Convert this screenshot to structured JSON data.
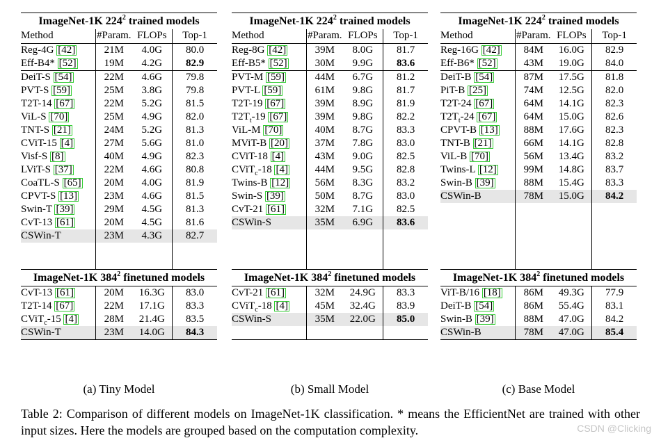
{
  "panels": [
    {
      "name": "tiny",
      "section224_title_prefix": "ImageNet-1K 224",
      "section224_title_sup": "2",
      "section224_title_suffix": " trained models",
      "headers": [
        "Method",
        "#Param.",
        "FLOPs",
        "Top-1"
      ],
      "groups224": [
        [
          {
            "method": "Reg-4G ",
            "ref": "[42]",
            "param": "21M",
            "flops": "4.0G",
            "top1": "80.0"
          },
          {
            "method": "Eff-B4* ",
            "ref": "[52]",
            "param": "19M",
            "flops": "4.2G",
            "top1": "82.9",
            "best": true
          }
        ],
        [
          {
            "method": "DeiT-S ",
            "ref": "[54]",
            "param": "22M",
            "flops": "4.6G",
            "top1": "79.8"
          },
          {
            "method": "PVT-S ",
            "ref": "[59]",
            "param": "25M",
            "flops": "3.8G",
            "top1": "79.8"
          },
          {
            "method": "T2T-14 ",
            "ref": "[67]",
            "param": "22M",
            "flops": "5.2G",
            "top1": "81.5"
          },
          {
            "method": "ViL-S ",
            "ref": "[70]",
            "param": "25M",
            "flops": "4.9G",
            "top1": "82.0"
          },
          {
            "method": "TNT-S ",
            "ref": "[21]",
            "param": "24M",
            "flops": "5.2G",
            "top1": "81.3"
          },
          {
            "method": "CViT-15 ",
            "ref": "[4]",
            "param": "27M",
            "flops": "5.6G",
            "top1": "81.0"
          },
          {
            "method": "Visf-S ",
            "ref": "[8]",
            "param": "40M",
            "flops": "4.9G",
            "top1": "82.3"
          },
          {
            "method": "LViT-S ",
            "ref": "[37]",
            "param": "22M",
            "flops": "4.6G",
            "top1": "80.8"
          },
          {
            "method": "CoaTL-S ",
            "ref": "[65]",
            "param": "20M",
            "flops": "4.0G",
            "top1": "81.9"
          },
          {
            "method": "CPVT-S ",
            "ref": "[13]",
            "param": "23M",
            "flops": "4.6G",
            "top1": "81.5"
          },
          {
            "method": "Swin-T ",
            "ref": "[39]",
            "param": "29M",
            "flops": "4.5G",
            "top1": "81.3"
          },
          {
            "method": "CvT-13 ",
            "ref": "[61]",
            "param": "20M",
            "flops": "4.5G",
            "top1": "81.6"
          },
          {
            "method": "CSWin-T",
            "ref": "",
            "param": "23M",
            "flops": "4.3G",
            "top1": "82.7",
            "highlight": true
          }
        ]
      ],
      "section384_title_prefix": "ImageNet-1K 384",
      "section384_title_sup": "2",
      "section384_title_suffix": " finetuned models",
      "rows384": [
        {
          "method": "CvT-13 ",
          "ref": "[61]",
          "param": "20M",
          "flops": "16.3G",
          "top1": "83.0"
        },
        {
          "method": "T2T-14 ",
          "ref": "[67]",
          "param": "22M",
          "flops": "17.1G",
          "top1": "83.3"
        },
        {
          "method": "CViT",
          "msub": "c",
          "method_after": "-15 ",
          "ref": "[4]",
          "param": "28M",
          "flops": "21.4G",
          "top1": "83.5"
        },
        {
          "method": "CSWin-T",
          "ref": "",
          "param": "23M",
          "flops": "14.0G",
          "top1": "84.3",
          "highlight": true,
          "best": true
        }
      ],
      "subcaption": "(a) Tiny Model"
    },
    {
      "name": "small",
      "section224_title_prefix": "ImageNet-1K 224",
      "section224_title_sup": "2",
      "section224_title_suffix": " trained models",
      "headers": [
        "Method",
        "#Param.",
        "FLOPs",
        "Top-1"
      ],
      "groups224": [
        [
          {
            "method": "Reg-8G ",
            "ref": "[42]",
            "param": "39M",
            "flops": "8.0G",
            "top1": "81.7"
          },
          {
            "method": "Eff-B5* ",
            "ref": "[52]",
            "param": "30M",
            "flops": "9.9G",
            "top1": "83.6",
            "best": true
          }
        ],
        [
          {
            "method": "PVT-M ",
            "ref": "[59]",
            "param": "44M",
            "flops": "6.7G",
            "top1": "81.2"
          },
          {
            "method": "PVT-L ",
            "ref": "[59]",
            "param": "61M",
            "flops": "9.8G",
            "top1": "81.7"
          },
          {
            "method": "T2T-19 ",
            "ref": "[67]",
            "param": "39M",
            "flops": "8.9G",
            "top1": "81.9"
          },
          {
            "method": "T2T",
            "msub": "t",
            "method_after": "-19 ",
            "ref": "[67]",
            "param": "39M",
            "flops": "9.8G",
            "top1": "82.2"
          },
          {
            "method": "ViL-M ",
            "ref": "[70]",
            "param": "40M",
            "flops": "8.7G",
            "top1": "83.3"
          },
          {
            "method": "MViT-B  ",
            "ref": "[20]",
            "param": "37M",
            "flops": "7.8G",
            "top1": "83.0"
          },
          {
            "method": "CViT-18 ",
            "ref": "[4]",
            "param": "43M",
            "flops": "9.0G",
            "top1": "82.5"
          },
          {
            "method": "CViT",
            "msub": "c",
            "method_after": "-18 ",
            "ref": "[4]",
            "param": "44M",
            "flops": "9.5G",
            "top1": "82.8"
          },
          {
            "method": "Twins-B ",
            "ref": "[12]",
            "param": "56M",
            "flops": "8.3G",
            "top1": "83.2"
          },
          {
            "method": "Swin-S ",
            "ref": "[39]",
            "param": "50M",
            "flops": "8.7G",
            "top1": "83.0"
          },
          {
            "method": "CvT-21 ",
            "ref": "[61]",
            "param": "32M",
            "flops": "7.1G",
            "top1": "82.5"
          },
          {
            "method": "CSWin-S",
            "ref": "",
            "param": "35M",
            "flops": "6.9G",
            "top1": "83.6",
            "highlight": true,
            "best": true
          }
        ]
      ],
      "section384_title_prefix": "ImageNet-1K 384",
      "section384_title_sup": "2",
      "section384_title_suffix": " finetuned models",
      "rows384": [
        {
          "method": "CvT-21  ",
          "ref": "[61]",
          "param": "32M",
          "flops": "24.9G",
          "top1": "83.3"
        },
        {
          "method": "CViT",
          "msub": "c",
          "method_after": "-18 ",
          "ref": "[4]",
          "param": "45M",
          "flops": "32.4G",
          "top1": "83.9"
        },
        {
          "method": "CSWin-S",
          "ref": "",
          "param": "35M",
          "flops": "22.0G",
          "top1": "85.0",
          "highlight": true,
          "best": true
        }
      ],
      "subcaption": "(b) Small Model"
    },
    {
      "name": "base",
      "section224_title_prefix": "ImageNet-1K 224",
      "section224_title_sup": "2",
      "section224_title_suffix": " trained models",
      "headers": [
        "Method",
        "#Param.",
        "FLOPs",
        "Top-1"
      ],
      "groups224": [
        [
          {
            "method": "Reg-16G ",
            "ref": "[42]",
            "param": "84M",
            "flops": "16.0G",
            "top1": "82.9"
          },
          {
            "method": "Eff-B6* ",
            "ref": "[52]",
            "param": "43M",
            "flops": "19.0G",
            "top1": "84.0"
          }
        ],
        [
          {
            "method": "DeiT-B ",
            "ref": "[54]",
            "param": "87M",
            "flops": "17.5G",
            "top1": "81.8"
          },
          {
            "method": "PiT-B ",
            "ref": "[25]",
            "param": "74M",
            "flops": "12.5G",
            "top1": "82.0"
          },
          {
            "method": "T2T-24 ",
            "ref": "[67]",
            "param": "64M",
            "flops": "14.1G",
            "top1": "82.3"
          },
          {
            "method": "T2T",
            "msub": "t",
            "method_after": "-24 ",
            "ref": "[67]",
            "param": "64M",
            "flops": "15.0G",
            "top1": "82.6"
          },
          {
            "method": "CPVT-B ",
            "ref": "[13]",
            "param": "88M",
            "flops": "17.6G",
            "top1": "82.3"
          },
          {
            "method": "TNT-B ",
            "ref": "[21]",
            "param": "66M",
            "flops": "14.1G",
            "top1": "82.8"
          },
          {
            "method": "ViL-B ",
            "ref": "[70]",
            "param": "56M",
            "flops": "13.4G",
            "top1": "83.2"
          },
          {
            "method": "Twins-L ",
            "ref": "[12]",
            "param": "99M",
            "flops": "14.8G",
            "top1": "83.7"
          },
          {
            "method": "Swin-B ",
            "ref": "[39]",
            "param": "88M",
            "flops": "15.4G",
            "top1": "83.3"
          },
          {
            "method": "CSWin-B",
            "ref": "",
            "param": "78M",
            "flops": "15.0G",
            "top1": "84.2",
            "highlight": true,
            "best": true
          }
        ]
      ],
      "section384_title_prefix": "ImageNet-1K 384",
      "section384_title_sup": "2",
      "section384_title_suffix": " finetuned models",
      "rows384": [
        {
          "method": "ViT-B/16 ",
          "ref": "[18]",
          "param": "86M",
          "flops": "49.3G",
          "top1": "77.9"
        },
        {
          "method": "DeiT-B ",
          "ref": "[54]",
          "param": "86M",
          "flops": "55.4G",
          "top1": "83.1"
        },
        {
          "method": "Swin-B ",
          "ref": "[39]",
          "param": "88M",
          "flops": "47.0G",
          "top1": "84.2"
        },
        {
          "method": "CSWin-B",
          "ref": "",
          "param": "78M",
          "flops": "47.0G",
          "top1": "85.4",
          "highlight": true,
          "best": true
        }
      ],
      "subcaption": "(c) Base Model"
    }
  ],
  "table_caption": "Table 2: Comparison of different models on ImageNet-1K classification. * means the EfficientNet are trained with other input sizes. Here the models are grouped based on the computation complexity.",
  "watermark": "CSDN @Clicking"
}
